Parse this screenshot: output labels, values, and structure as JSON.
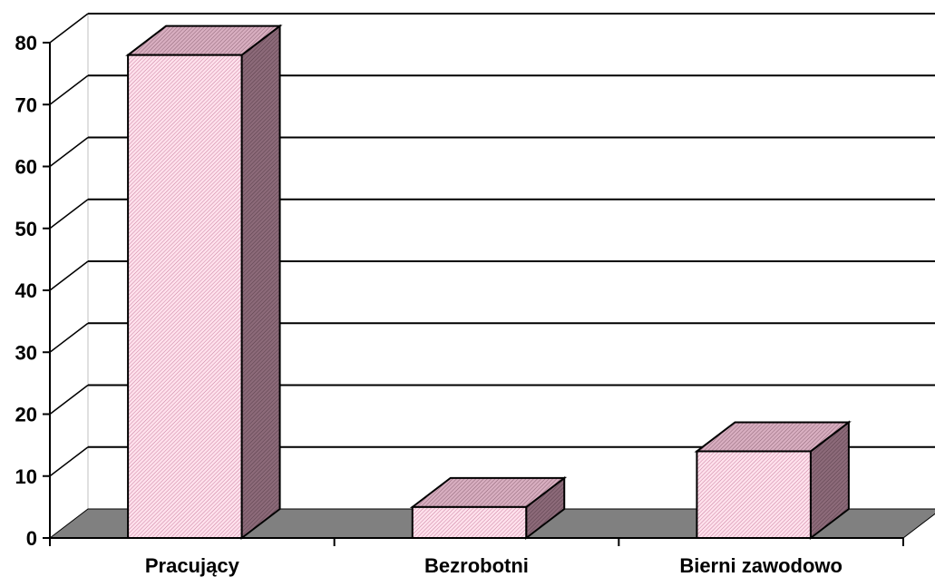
{
  "chart_data": {
    "type": "bar",
    "categories": [
      "Pracujący",
      "Bezrobotni",
      "Bierni zawodowo"
    ],
    "values": [
      78,
      5,
      14
    ],
    "ylim": [
      0,
      80
    ],
    "yticks": [
      0,
      10,
      20,
      30,
      40,
      50,
      60,
      70,
      80
    ],
    "ytick_labels": [
      "0",
      "10",
      "20",
      "30",
      "40",
      "50",
      "60",
      "70",
      "80"
    ],
    "grid": true,
    "style": "3d-column",
    "colors": {
      "bar_front": "#ffccdd",
      "bar_top": "#c9a0b4",
      "bar_side": "#7f5a6a",
      "floor": "#808080",
      "grid": "#000000"
    }
  }
}
